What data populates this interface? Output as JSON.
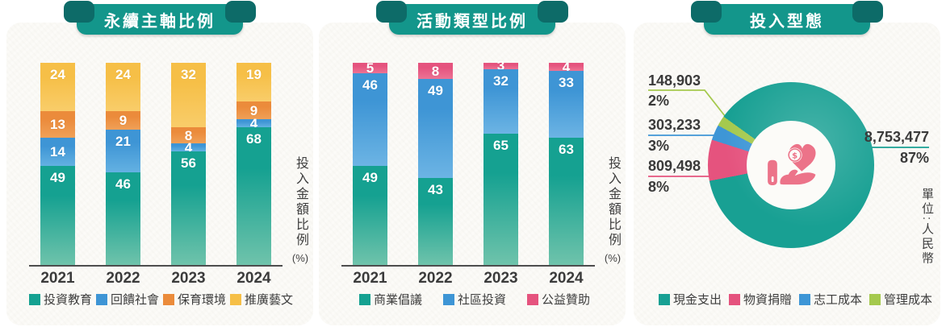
{
  "page": {
    "background": "#ffffff",
    "card_background": "#faf9f5"
  },
  "ribbon": {
    "color": "#13968b",
    "ear_color": "#0d6b68",
    "text_color": "#ffffff"
  },
  "chart_data": [
    {
      "type": "bar",
      "stacked": true,
      "title": "永續主軸比例",
      "categories": [
        "2021",
        "2022",
        "2023",
        "2024"
      ],
      "series": [
        {
          "name": "投資教育",
          "color": "#15a191",
          "color2": "#6fc3ab",
          "values": [
            49,
            46,
            56,
            68
          ]
        },
        {
          "name": "回饋社會",
          "color": "#3e95d5",
          "color2": "#63b1e2",
          "values": [
            14,
            21,
            4,
            4
          ]
        },
        {
          "name": "保育環境",
          "color": "#eb8b3b",
          "color2": "#f0a057",
          "values": [
            13,
            9,
            8,
            9
          ]
        },
        {
          "name": "推廣藝文",
          "color": "#f6bf47",
          "color2": "#f9cd6a",
          "values": [
            24,
            24,
            32,
            19
          ]
        }
      ],
      "ylabel": "投入金額比例",
      "ylabel_unit": "(%)",
      "ylim": [
        0,
        100
      ],
      "grid": false,
      "legend_position": "bottom"
    },
    {
      "type": "bar",
      "stacked": true,
      "title": "活動類型比例",
      "categories": [
        "2021",
        "2022",
        "2023",
        "2024"
      ],
      "series": [
        {
          "name": "商業倡議",
          "color": "#15a191",
          "color2": "#6fc3ab",
          "values": [
            49,
            43,
            65,
            63
          ]
        },
        {
          "name": "社區投資",
          "color": "#3e95d5",
          "color2": "#6cb4e4",
          "values": [
            46,
            49,
            32,
            33
          ]
        },
        {
          "name": "公益贊助",
          "color": "#e5537e",
          "color2": "#ec7394",
          "values": [
            5,
            8,
            3,
            4
          ]
        }
      ],
      "ylabel": "投入金額比例",
      "ylabel_unit": "(%)",
      "ylim": [
        0,
        100
      ],
      "grid": false,
      "legend_position": "bottom"
    },
    {
      "type": "pie",
      "donut": true,
      "title": "投入型態",
      "unit_note": "單位:人民幣",
      "center_icon": "hand-heart-coin-icon",
      "legend_position": "bottom",
      "slices": [
        {
          "name": "現金支出",
          "color": "#18a093",
          "value": 8753477,
          "pct": 87,
          "value_label": "8,753,477",
          "pct_label": "87%"
        },
        {
          "name": "物資捐贈",
          "color": "#e5537e",
          "value": 809498,
          "pct": 8,
          "value_label": "809,498",
          "pct_label": "8%"
        },
        {
          "name": "志工成本",
          "color": "#3e96d6",
          "value": 303233,
          "pct": 3,
          "value_label": "303,233",
          "pct_label": "3%"
        },
        {
          "name": "管理成本",
          "color": "#a5c94e",
          "value": 148903,
          "pct": 2,
          "value_label": "148,903",
          "pct_label": "2%"
        }
      ]
    }
  ]
}
